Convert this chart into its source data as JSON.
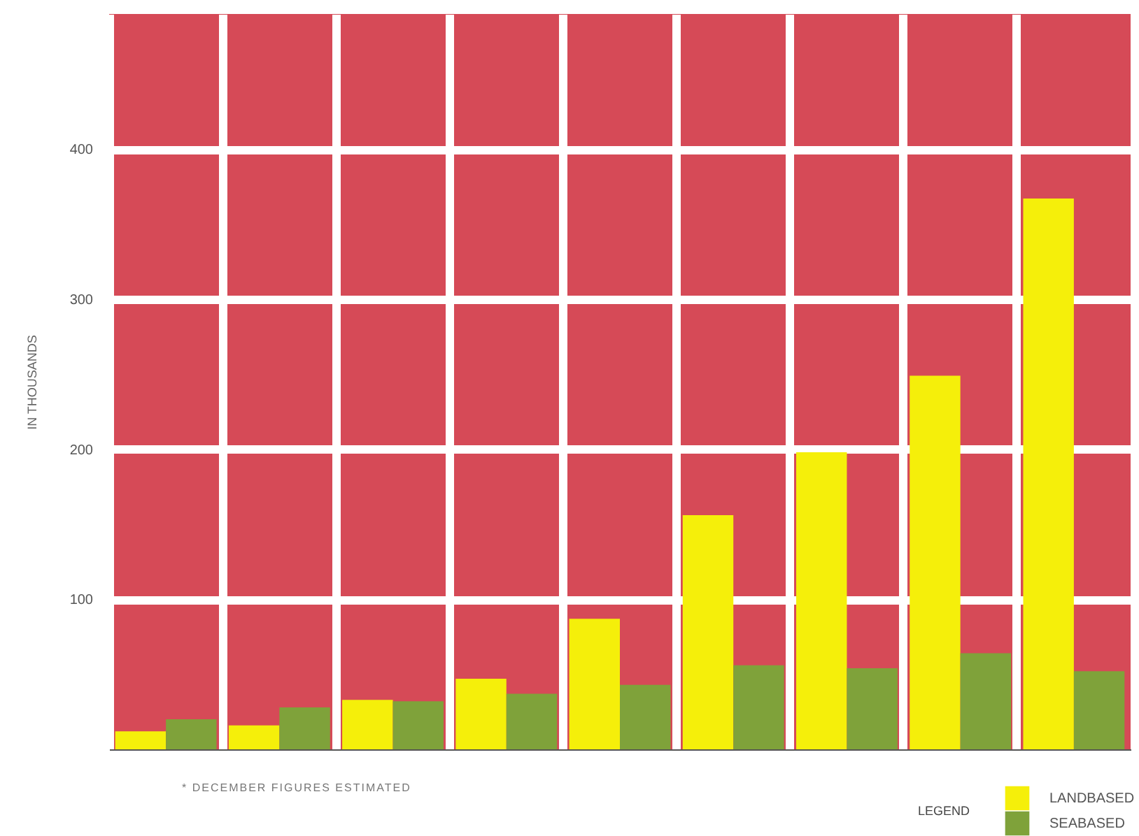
{
  "chart_data": {
    "type": "bar",
    "ylabel": "IN THOUSANDS",
    "legend_title": "LEGEND",
    "annotations": [
      "* DECEMBER FIGURES ESTIMATED"
    ],
    "categories": [
      null,
      null,
      null,
      null,
      null,
      null,
      null,
      null,
      null
    ],
    "series": [
      {
        "name": "LANDBASED",
        "color": "#f5ef0a",
        "values": [
          12,
          16,
          33,
          47,
          87,
          156,
          198,
          249,
          367
        ]
      },
      {
        "name": "SEABASED",
        "color": "#7fa23a",
        "values": [
          20,
          28,
          32,
          37,
          43,
          56,
          54,
          64,
          52
        ]
      }
    ],
    "ylim": [
      0,
      490
    ],
    "yticks": [
      100,
      200,
      300,
      400
    ],
    "grid": true,
    "legend": "bottom right"
  }
}
